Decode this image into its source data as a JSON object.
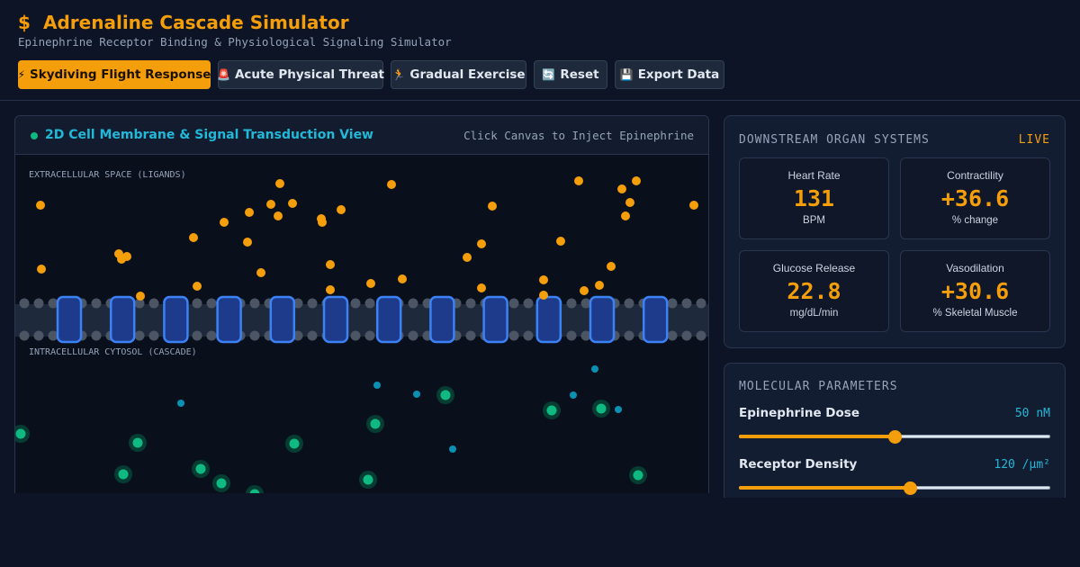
{
  "header": {
    "title_icon": "$",
    "title": "Adrenaline Cascade Simulator",
    "subtitle": "Epinephrine Receptor Binding & Physiological Signaling Simulator"
  },
  "toolbar": {
    "buttons": [
      {
        "icon": "⚡",
        "label": "Skydiving Flight Response"
      },
      {
        "icon": "🚨",
        "label": "Acute Physical Threat"
      },
      {
        "icon": "🏃",
        "label": "Gradual Exercise"
      },
      {
        "icon": "🔄",
        "label": "Reset"
      },
      {
        "icon": "💾",
        "label": "Export Data"
      }
    ]
  },
  "simulation": {
    "title": "2D Cell Membrane & Signal Transduction View",
    "hint": "Click Canvas to Inject Epinephrine",
    "extracellular_label": "EXTRACELLULAR SPACE (LIGANDS)",
    "intracellular_label": "INTRACELLULAR CYTOSOL (CASCADE)",
    "receptor_count": 12
  },
  "organs": {
    "title": "DOWNSTREAM ORGAN SYSTEMS",
    "status": "LIVE",
    "metrics": [
      {
        "label": "Heart Rate",
        "value": "131",
        "unit": "BPM"
      },
      {
        "label": "Contractility",
        "value": "+36.6",
        "unit": "% change"
      },
      {
        "label": "Glucose Release",
        "value": "22.8",
        "unit": "mg/dL/min"
      },
      {
        "label": "Vasodilation",
        "value": "+30.6",
        "unit": "% Skeletal Muscle"
      }
    ]
  },
  "parameters": {
    "title": "MOLECULAR PARAMETERS",
    "items": [
      {
        "label": "Epinephrine Dose",
        "value": "50 nM",
        "level": 0.5
      },
      {
        "label": "Receptor Density",
        "value": "120 /µm²",
        "level": 0.55
      }
    ]
  },
  "colors": {
    "accent": "#f59e0b",
    "cyan": "#22b8d8",
    "background": "#0c1425",
    "ligand": "#f59e0b",
    "receptor": "#3b82f6",
    "active_messenger": "#10b981",
    "second_messenger": "#0891b2"
  }
}
